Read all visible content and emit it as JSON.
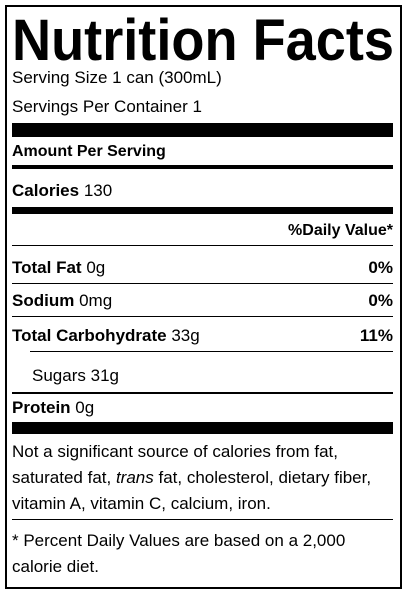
{
  "title": "Nutrition Facts",
  "serving_size": "Serving Size 1 can (300mL)",
  "servings_per_container": "Servings Per Container 1",
  "amount_per_serving": "Amount Per Serving",
  "calories": {
    "label": "Calories",
    "value": "130"
  },
  "daily_value_header": "%Daily Value*",
  "nutrients": [
    {
      "name": "Total Fat",
      "amount": "0g",
      "daily_value": "0%"
    },
    {
      "name": "Sodium",
      "amount": "0mg",
      "daily_value": "0%"
    },
    {
      "name": "Total Carbohydrate",
      "amount": "33g",
      "daily_value": "11%"
    }
  ],
  "sugars": {
    "name": "Sugars",
    "amount": "31g"
  },
  "protein": {
    "name": "Protein",
    "amount": "0g"
  },
  "footnote": [
    "Not a significant source of calories from fat, saturated fat, ",
    "trans",
    " fat, cholesterol, dietary fiber, vitamin A, vitamin C, calcium, iron."
  ],
  "note": "* Percent Daily Values are based on a 2,000 calorie diet."
}
